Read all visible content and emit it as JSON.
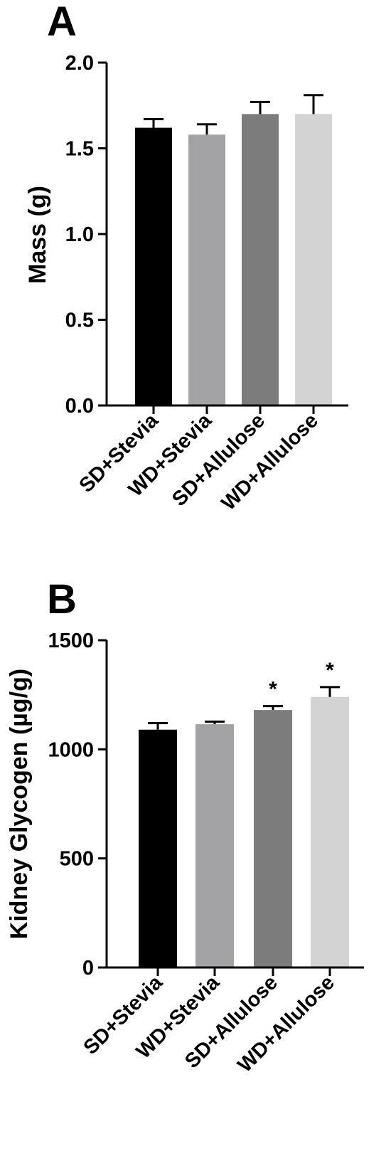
{
  "chart_data": [
    {
      "type": "bar",
      "panel_label": "A",
      "ylabel": "Mass (g)",
      "xlabel": "",
      "categories": [
        "SD+Stevia",
        "WD+Stevia",
        "SD+Allulose",
        "WD+Allulose"
      ],
      "values": [
        1.62,
        1.58,
        1.7,
        1.7
      ],
      "errors": [
        0.05,
        0.06,
        0.07,
        0.11
      ],
      "colors": [
        "#000000",
        "#a3a3a6",
        "#7c7c7c",
        "#d3d3d3"
      ],
      "ylim": [
        0,
        2.0
      ],
      "yticks": [
        0.0,
        0.5,
        1.0,
        1.5,
        2.0
      ],
      "ytick_labels": [
        "0.0",
        "0.5",
        "1.0",
        "1.5",
        "2.0"
      ],
      "significance": [
        "",
        "",
        "",
        ""
      ],
      "grid": false,
      "legend": "none"
    },
    {
      "type": "bar",
      "panel_label": "B",
      "ylabel": "Kidney Glycogen (µg/g)",
      "xlabel": "",
      "categories": [
        "SD+Stevia",
        "WD+Stevia",
        "SD+Allulose",
        "WD+Allulose"
      ],
      "values": [
        1090,
        1115,
        1180,
        1240
      ],
      "errors": [
        30,
        12,
        18,
        45
      ],
      "colors": [
        "#000000",
        "#a3a3a6",
        "#7c7c7c",
        "#d3d3d3"
      ],
      "ylim": [
        0,
        1500
      ],
      "yticks": [
        0,
        500,
        1000,
        1500
      ],
      "ytick_labels": [
        "0",
        "500",
        "1000",
        "1500"
      ],
      "significance": [
        "",
        "",
        "*",
        "*"
      ],
      "grid": false,
      "legend": "none"
    }
  ]
}
